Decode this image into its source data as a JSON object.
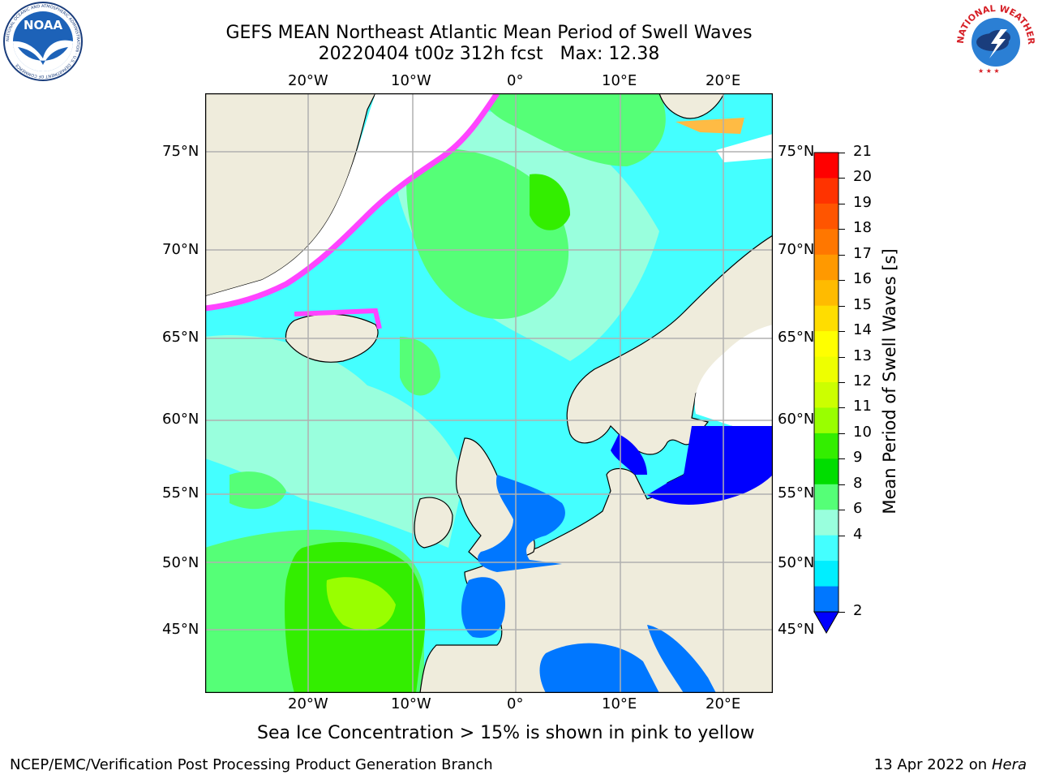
{
  "title": {
    "line1": "GEFS MEAN Northeast Atlantic Mean Period of Swell Waves",
    "line2": "20220404 t00z 312h fcst   Max: 12.38"
  },
  "logos": {
    "left": {
      "text": "NOAA",
      "ring_text": "NATIONAL OCEANIC AND ATMOSPHERIC ADMINISTRATION · U.S. DEPARTMENT OF COMMERCE"
    },
    "right": {
      "ring_text": "NATIONAL WEATHER SERVICE"
    }
  },
  "axes": {
    "lon_labels": [
      "20°W",
      "10°W",
      "0°",
      "10°E",
      "20°E"
    ],
    "lat_labels": [
      "75°N",
      "70°N",
      "65°N",
      "60°N",
      "55°N",
      "50°N",
      "45°N"
    ]
  },
  "colorbar": {
    "label": "Mean Period of Swell Waves [s]",
    "ticks": [
      "21",
      "20",
      "19",
      "18",
      "17",
      "16",
      "15",
      "14",
      "13",
      "12",
      "11",
      "10",
      "9",
      "8",
      "6",
      "4",
      "2"
    ],
    "colors": [
      "#ff0000",
      "#ff3300",
      "#ff5500",
      "#ff7700",
      "#ff9900",
      "#ffbb00",
      "#ffdd00",
      "#ffff00",
      "#eeff00",
      "#ccff00",
      "#99ff00",
      "#33ee00",
      "#00dd00",
      "#55ff77",
      "#99ffdd",
      "#44ffff",
      "#00eeff",
      "#0077ff"
    ],
    "extend_color": "#0000ff"
  },
  "colors": {
    "land": "#efecdc",
    "ocean_base": "#44ffff",
    "grid": "#b0b0b0"
  },
  "caption": "Sea Ice Concentration > 15% is shown in pink to yellow",
  "footer": {
    "left": "NCEP/EMC/Verification Post Processing Product Generation Branch",
    "right_prefix": "13 Apr 2022 on ",
    "right_host": "Hera"
  }
}
